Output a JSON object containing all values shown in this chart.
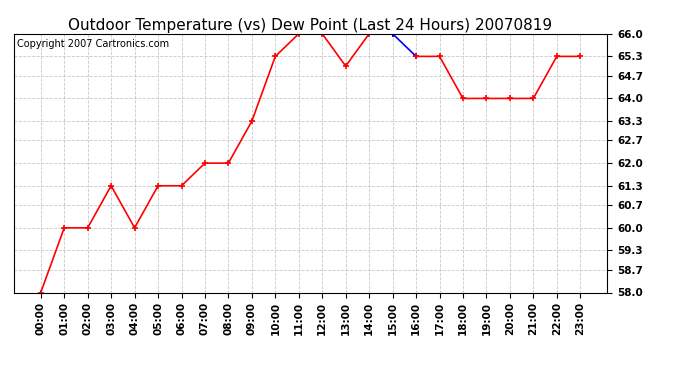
{
  "title": "Outdoor Temperature (vs) Dew Point (Last 24 Hours) 20070819",
  "copyright": "Copyright 2007 Cartronics.com",
  "x_labels": [
    "00:00",
    "01:00",
    "02:00",
    "03:00",
    "04:00",
    "05:00",
    "06:00",
    "07:00",
    "08:00",
    "09:00",
    "10:00",
    "11:00",
    "12:00",
    "13:00",
    "14:00",
    "15:00",
    "16:00",
    "17:00",
    "18:00",
    "19:00",
    "20:00",
    "21:00",
    "22:00",
    "23:00"
  ],
  "temp_values": [
    58.0,
    60.0,
    60.0,
    61.3,
    60.0,
    61.3,
    61.3,
    62.0,
    62.0,
    63.3,
    65.3,
    66.0,
    66.0,
    65.0,
    66.0,
    66.0,
    65.3,
    65.3,
    64.0,
    64.0,
    64.0,
    64.0,
    65.3,
    65.3
  ],
  "ylim": [
    58.0,
    66.0
  ],
  "yticks": [
    58.0,
    58.7,
    59.3,
    60.0,
    60.7,
    61.3,
    62.0,
    62.7,
    63.3,
    64.0,
    64.7,
    65.3,
    66.0
  ],
  "blue_segment_indices": [
    15,
    16
  ],
  "line_color_red": "#FF0000",
  "line_color_blue": "#0000FF",
  "bg_color": "#FFFFFF",
  "grid_color": "#C8C8C8",
  "title_fontsize": 11,
  "tick_fontsize": 7.5,
  "copyright_fontsize": 7
}
